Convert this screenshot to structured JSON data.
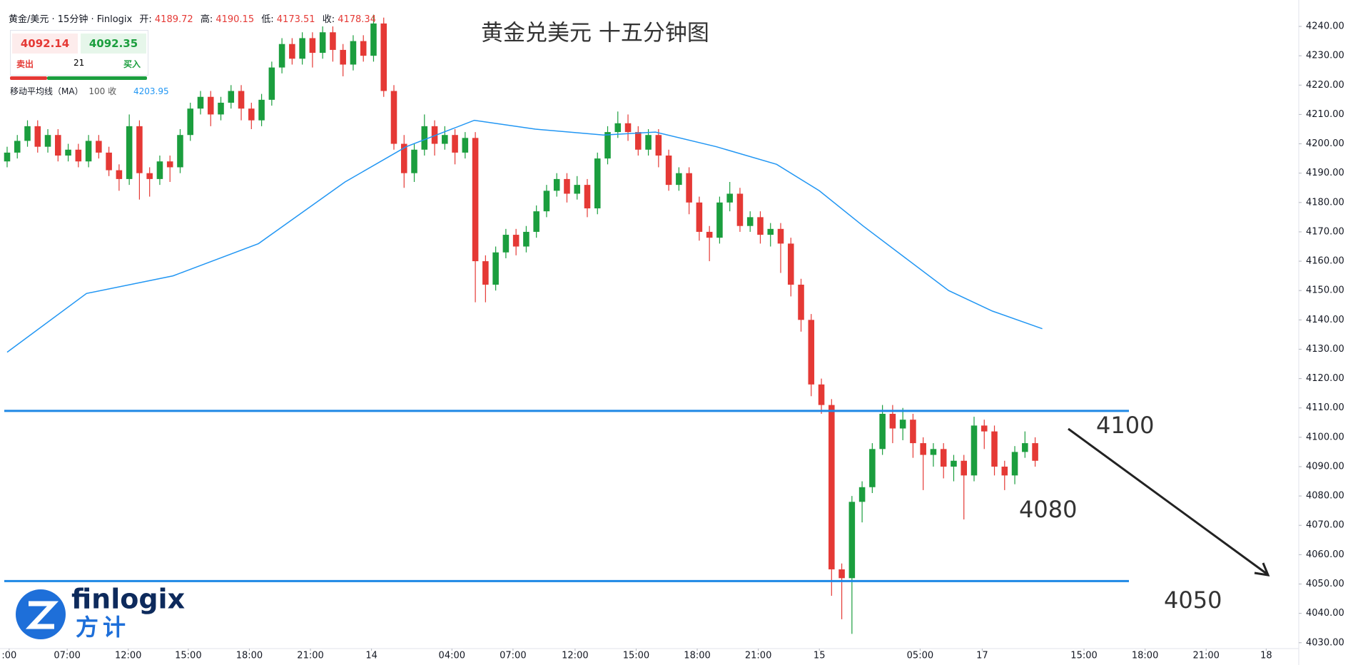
{
  "chart_data": {
    "type": "candlestick",
    "title": "黄金兑美元 十五分钟图",
    "header": {
      "symbol": "黄金/美元 · 15分钟 · Finlogix",
      "open_label": "开:",
      "open": 4189.72,
      "high_label": "高:",
      "high": 4190.15,
      "low_label": "低:",
      "low": 4173.51,
      "close_label": "收:",
      "close": 4178.34
    },
    "quote": {
      "sell": 4092.14,
      "buy": 4092.35,
      "spread": 21,
      "sell_label": "卖出",
      "buy_label": "买入"
    },
    "up_color": "#1b9e3e",
    "down_color": "#e53935",
    "open": [
      4194,
      4197,
      4201,
      4206,
      4199,
      4203,
      4196,
      4198,
      4194,
      4201,
      4197,
      4191,
      4188,
      4206,
      4190,
      4188,
      4194,
      4192,
      4203,
      4212,
      4216,
      4210,
      4214,
      4218,
      4212,
      4208,
      4215,
      4226,
      4234,
      4229,
      4236,
      4231,
      4238,
      4232,
      4227,
      4235,
      4230,
      4241,
      4218,
      4200,
      4190,
      4198,
      4206,
      4200,
      4203,
      4197,
      4202,
      4160,
      4152,
      4163,
      4169,
      4165,
      4170,
      4177,
      4184,
      4188,
      4183,
      4186,
      4178,
      4195,
      4204,
      4207,
      4204,
      4198,
      4203,
      4196,
      4186,
      4190,
      4180,
      4170,
      4168,
      4180,
      4183,
      4172,
      4175,
      4169,
      4171,
      4166,
      4152,
      4140,
      4118,
      4111,
      4055,
      4052,
      4078,
      4083,
      4096,
      4108,
      4103,
      4106,
      4098,
      4094,
      4096,
      4090,
      4092,
      4087,
      4104,
      4102,
      4090,
      4087,
      4095,
      4098
    ],
    "high": [
      4199,
      4203,
      4208,
      4208,
      4205,
      4205,
      4200,
      4200,
      4203,
      4203,
      4199,
      4193,
      4210,
      4208,
      4192,
      4196,
      4196,
      4205,
      4214,
      4218,
      4218,
      4216,
      4220,
      4220,
      4214,
      4217,
      4228,
      4236,
      4236,
      4238,
      4238,
      4240,
      4240,
      4234,
      4237,
      4237,
      4244,
      4243,
      4220,
      4203,
      4200,
      4210,
      4208,
      4206,
      4205,
      4204,
      4204,
      4162,
      4165,
      4171,
      4171,
      4172,
      4179,
      4186,
      4190,
      4190,
      4189,
      4188,
      4197,
      4206,
      4211,
      4210,
      4206,
      4205,
      4205,
      4198,
      4192,
      4192,
      4182,
      4172,
      4182,
      4187,
      4185,
      4177,
      4177,
      4173,
      4173,
      4168,
      4154,
      4142,
      4120,
      4113,
      4057,
      4080,
      4085,
      4098,
      4111,
      4111,
      4110,
      4108,
      4100,
      4098,
      4098,
      4094,
      4094,
      4107,
      4106,
      4104,
      4092,
      4097,
      4102,
      4100
    ],
    "low": [
      4192,
      4195,
      4199,
      4197,
      4197,
      4194,
      4194,
      4192,
      4192,
      4195,
      4189,
      4184,
      4186,
      4181,
      4182,
      4186,
      4187,
      4190,
      4201,
      4210,
      4206,
      4208,
      4212,
      4208,
      4205,
      4206,
      4213,
      4224,
      4227,
      4227,
      4226,
      4229,
      4228,
      4223,
      4225,
      4228,
      4228,
      4216,
      4198,
      4185,
      4187,
      4196,
      4196,
      4198,
      4193,
      4195,
      4146,
      4146,
      4150,
      4161,
      4162,
      4163,
      4168,
      4175,
      4182,
      4180,
      4181,
      4175,
      4176,
      4193,
      4202,
      4201,
      4196,
      4196,
      4192,
      4184,
      4184,
      4176,
      4167,
      4160,
      4166,
      4177,
      4170,
      4170,
      4166,
      4165,
      4156,
      4148,
      4136,
      4114,
      4108,
      4046,
      4038,
      4033,
      4071,
      4081,
      4094,
      4098,
      4099,
      4093,
      4082,
      4090,
      4086,
      4085,
      4072,
      4085,
      4096,
      4087,
      4082,
      4084,
      4093,
      4090
    ],
    "close": [
      4197,
      4201,
      4206,
      4199,
      4203,
      4196,
      4198,
      4194,
      4201,
      4197,
      4191,
      4188,
      4206,
      4190,
      4188,
      4194,
      4192,
      4203,
      4212,
      4216,
      4210,
      4214,
      4218,
      4212,
      4208,
      4215,
      4226,
      4234,
      4229,
      4236,
      4231,
      4238,
      4232,
      4227,
      4235,
      4230,
      4241,
      4218,
      4200,
      4190,
      4198,
      4206,
      4200,
      4203,
      4197,
      4202,
      4160,
      4152,
      4163,
      4169,
      4165,
      4170,
      4177,
      4184,
      4188,
      4183,
      4186,
      4178,
      4195,
      4204,
      4207,
      4204,
      4198,
      4203,
      4196,
      4186,
      4190,
      4180,
      4170,
      4168,
      4180,
      4183,
      4172,
      4175,
      4169,
      4171,
      4166,
      4152,
      4140,
      4118,
      4111,
      4055,
      4052,
      4078,
      4083,
      4096,
      4108,
      4103,
      4106,
      4098,
      4094,
      4096,
      4090,
      4092,
      4087,
      4104,
      4102,
      4090,
      4087,
      4095,
      4098,
      4092
    ],
    "ma": {
      "name": "移动平均线（MA）",
      "params": "100 收",
      "last": 4203.95,
      "color": "#2196f3",
      "x": [
        0,
        7.8,
        16.3,
        24.7,
        33.2,
        39.2,
        45.9,
        51.9,
        58.6,
        63.7,
        69.7,
        75.6,
        79.8,
        84.1,
        88.3,
        92.5,
        96.8,
        101.7
      ],
      "values": [
        4129,
        4149,
        4155,
        4166,
        4187,
        4199,
        4208,
        4205,
        4203,
        4204,
        4199,
        4193,
        4184,
        4172,
        4161,
        4150,
        4143,
        4137
      ]
    },
    "levels": [
      4109,
      4051
    ],
    "level_color": "#1e88e5",
    "annotations": [
      "4100",
      "4080",
      "4050"
    ],
    "xlim": [
      -0.7,
      126.9
    ],
    "xticks": [
      {
        "value": 0.2,
        "label": ":00"
      },
      {
        "value": 5.9,
        "label": "07:00"
      },
      {
        "value": 11.9,
        "label": "12:00"
      },
      {
        "value": 17.8,
        "label": "15:00"
      },
      {
        "value": 23.8,
        "label": "18:00"
      },
      {
        "value": 29.8,
        "label": "21:00"
      },
      {
        "value": 35.8,
        "label": "14"
      },
      {
        "value": 43.7,
        "label": "04:00"
      },
      {
        "value": 49.7,
        "label": "07:00"
      },
      {
        "value": 55.8,
        "label": "12:00"
      },
      {
        "value": 61.8,
        "label": "15:00"
      },
      {
        "value": 67.8,
        "label": "18:00"
      },
      {
        "value": 73.8,
        "label": "21:00"
      },
      {
        "value": 79.8,
        "label": "15"
      },
      {
        "value": 89.7,
        "label": "05:00"
      },
      {
        "value": 95.8,
        "label": "17"
      },
      {
        "value": 105.8,
        "label": "15:00"
      },
      {
        "value": 111.8,
        "label": "18:00"
      },
      {
        "value": 117.8,
        "label": "21:00"
      },
      {
        "value": 123.7,
        "label": "18"
      }
    ],
    "ylim": [
      4028,
      4249
    ],
    "yticks": [
      {
        "value": 4030,
        "label": "4030.00"
      },
      {
        "value": 4040,
        "label": "4040.00"
      },
      {
        "value": 4050,
        "label": "4050.00"
      },
      {
        "value": 4060,
        "label": "4060.00"
      },
      {
        "value": 4070,
        "label": "4070.00"
      },
      {
        "value": 4080,
        "label": "4080.00"
      },
      {
        "value": 4090,
        "label": "4090.00"
      },
      {
        "value": 4100,
        "label": "4100.00"
      },
      {
        "value": 4110,
        "label": "4110.00"
      },
      {
        "value": 4120,
        "label": "4120.00"
      },
      {
        "value": 4130,
        "label": "4130.00"
      },
      {
        "value": 4140,
        "label": "4140.00"
      },
      {
        "value": 4150,
        "label": "4150.00"
      },
      {
        "value": 4160,
        "label": "4160.00"
      },
      {
        "value": 4170,
        "label": "4170.00"
      },
      {
        "value": 4180,
        "label": "4180.00"
      },
      {
        "value": 4190,
        "label": "4190.00"
      },
      {
        "value": 4200,
        "label": "4200.00"
      },
      {
        "value": 4210,
        "label": "4210.00"
      },
      {
        "value": 4220,
        "label": "4220.00"
      },
      {
        "value": 4230,
        "label": "4230.00"
      },
      {
        "value": 4240,
        "label": "4240.00"
      }
    ],
    "logo": {
      "brand": "finlogix",
      "brand_cn": "方计"
    }
  }
}
